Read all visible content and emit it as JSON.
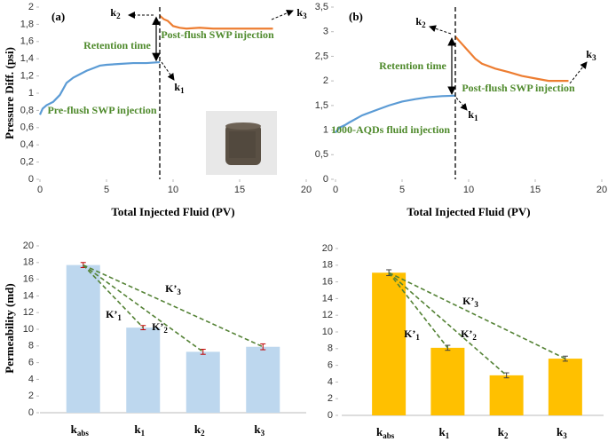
{
  "chart_data": [
    {
      "type": "line",
      "label": "(a)",
      "ylabel": "Pressure Diff. (psi)",
      "xlabel": "Total Injected Fluid (PV)",
      "xlim": [
        0,
        20
      ],
      "xticks": [
        0,
        5,
        10,
        15,
        20
      ],
      "ylim": [
        0,
        2
      ],
      "yticks": [
        0,
        {
          "value": 0.2,
          "label": "0,2"
        },
        {
          "value": 0.4,
          "label": "0,4"
        },
        {
          "value": 0.6,
          "label": "0,6"
        },
        {
          "value": 0.8,
          "label": "0,8"
        },
        1,
        {
          "value": 1.2,
          "label": "1,2"
        },
        {
          "value": 1.4,
          "label": "1,4"
        },
        {
          "value": 1.6,
          "label": "1,6"
        },
        {
          "value": 1.8,
          "label": "1,8"
        },
        2
      ],
      "series": [
        {
          "color": "#5b9bd5",
          "x": [
            0,
            0.2,
            0.5,
            1,
            1.5,
            2,
            2.5,
            3,
            3.5,
            4,
            4.5,
            5,
            6,
            7,
            8,
            9
          ],
          "values": [
            0.75,
            0.82,
            0.86,
            0.9,
            0.98,
            1.12,
            1.18,
            1.22,
            1.26,
            1.29,
            1.32,
            1.33,
            1.34,
            1.35,
            1.35,
            1.36
          ]
        },
        {
          "color": "#ed7d31",
          "x": [
            9,
            9.3,
            9.6,
            10,
            10.5,
            11,
            12,
            13,
            14,
            15,
            16,
            17,
            17.5
          ],
          "values": [
            1.9,
            1.86,
            1.84,
            1.78,
            1.76,
            1.75,
            1.76,
            1.75,
            1.75,
            1.75,
            1.75,
            1.75,
            1.75
          ]
        }
      ],
      "annotations": [
        "k2",
        "k3",
        "Retention time",
        "Post-flush SWP injection",
        "Pre-flush SWP injection",
        "k1"
      ]
    },
    {
      "type": "line",
      "label": "(b)",
      "xlabel": "Total Injected Fluid (PV)",
      "xlim": [
        0,
        20
      ],
      "xticks": [
        0,
        5,
        10,
        15,
        20
      ],
      "ylim": [
        0,
        3.5
      ],
      "yticks": [
        0,
        {
          "value": 0.5,
          "label": "0,5"
        },
        1,
        {
          "value": 1.5,
          "label": "1,5"
        },
        2,
        {
          "value": 2.5,
          "label": "2,5"
        },
        3,
        {
          "value": 3.5,
          "label": "3,5"
        }
      ],
      "series": [
        {
          "color": "#5b9bd5",
          "x": [
            0,
            0.3,
            0.7,
            1,
            2,
            3,
            4,
            5,
            6,
            7,
            8,
            9
          ],
          "values": [
            0.95,
            1.05,
            1.1,
            1.15,
            1.3,
            1.4,
            1.5,
            1.58,
            1.63,
            1.67,
            1.69,
            1.7
          ]
        },
        {
          "color": "#ed7d31",
          "x": [
            9,
            9.5,
            10,
            10.5,
            11,
            12,
            13,
            14,
            15,
            16,
            17,
            17.5
          ],
          "values": [
            2.9,
            2.75,
            2.6,
            2.45,
            2.35,
            2.25,
            2.18,
            2.1,
            2.05,
            2.0,
            2.0,
            2.0
          ]
        }
      ],
      "annotations": [
        "k2",
        "k3",
        "Retention time",
        "Post-flush SWP injection",
        "1000-AQDs fluid injection",
        "k1"
      ]
    },
    {
      "type": "bar",
      "ylabel": "Permeability (md)",
      "color": "#bdd7ee",
      "error_color": "#c00000",
      "categories": [
        "kabs",
        "k1",
        "k2",
        "k3"
      ],
      "values": [
        17.7,
        10.2,
        7.3,
        7.9
      ],
      "errors": [
        0.3,
        0.25,
        0.3,
        0.35
      ],
      "ylim": [
        0,
        20
      ],
      "yticks": [
        0,
        2,
        4,
        6,
        8,
        10,
        12,
        14,
        16,
        18,
        20
      ],
      "annotations": [
        "K’1",
        "K’2",
        "K’3"
      ]
    },
    {
      "type": "bar",
      "color": "#ffc000",
      "error_color": "#404040",
      "categories": [
        "kabs",
        "k1",
        "k2",
        "k3"
      ],
      "values": [
        17.1,
        8.1,
        4.8,
        6.8
      ],
      "errors": [
        0.35,
        0.3,
        0.3,
        0.3
      ],
      "ylim": [
        0,
        20
      ],
      "yticks": [
        0,
        2,
        4,
        6,
        8,
        10,
        12,
        14,
        16,
        18,
        20
      ],
      "annotations": [
        "K’1",
        "K’2",
        "K’3"
      ]
    }
  ]
}
